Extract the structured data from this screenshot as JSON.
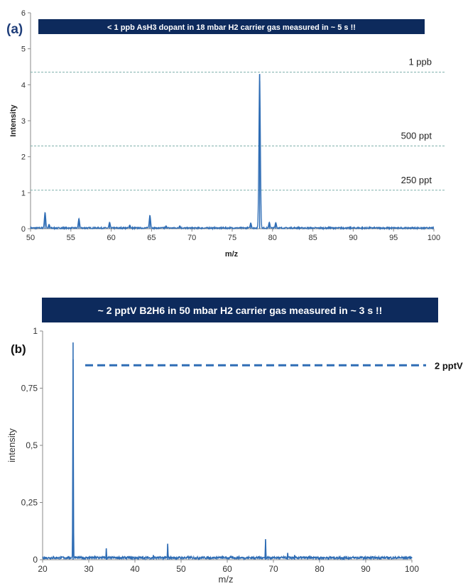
{
  "chart_data": [
    {
      "type": "line",
      "panel_label": "(a)",
      "title": "< 1 ppb AsH3  dopant in 18 mbar H2 carrier gas measured in ~ 5 s !!",
      "xlabel": "m/z",
      "ylabel": "Intensity",
      "xlim": [
        50,
        100
      ],
      "ylim": [
        0,
        6
      ],
      "xticks": [
        "50",
        "55",
        "60",
        "65",
        "70",
        "75",
        "80",
        "85",
        "90",
        "95",
        "100"
      ],
      "yticks": [
        "0",
        "1",
        "2",
        "3",
        "4",
        "5",
        "6"
      ],
      "grid": false,
      "reference_lines": [
        {
          "label": "1 ppb",
          "y": 4.35
        },
        {
          "label": "500 ppt",
          "y": 2.3
        },
        {
          "label": "250 ppt",
          "y": 1.07
        }
      ],
      "peaks": [
        {
          "x": 51.8,
          "y": 0.45
        },
        {
          "x": 52.3,
          "y": 0.12
        },
        {
          "x": 56.0,
          "y": 0.28
        },
        {
          "x": 59.8,
          "y": 0.18
        },
        {
          "x": 62.3,
          "y": 0.1
        },
        {
          "x": 64.8,
          "y": 0.37
        },
        {
          "x": 66.8,
          "y": 0.08
        },
        {
          "x": 68.5,
          "y": 0.08
        },
        {
          "x": 77.3,
          "y": 0.16
        },
        {
          "x": 78.4,
          "y": 4.3
        },
        {
          "x": 79.6,
          "y": 0.18
        },
        {
          "x": 80.4,
          "y": 0.17
        }
      ],
      "series_color": "#2f6db5"
    },
    {
      "type": "line",
      "panel_label": "(b)",
      "title": "~ 2 pptV B2H6 in 50 mbar H2 carrier gas measured in ~ 3 s !!",
      "xlabel": "m/z",
      "ylabel": "intensity",
      "xlim": [
        20,
        100
      ],
      "ylim": [
        0,
        1
      ],
      "xticks": [
        "20",
        "30",
        "40",
        "50",
        "60",
        "70",
        "80",
        "90",
        "100"
      ],
      "yticks": [
        "0",
        "0,25",
        "0,5",
        "0,75",
        "1"
      ],
      "grid": false,
      "reference_lines": [
        {
          "label": "2 pptV",
          "y": 0.85
        }
      ],
      "peaks": [
        {
          "x": 26.6,
          "y": 0.95
        },
        {
          "x": 33.8,
          "y": 0.05
        },
        {
          "x": 44.0,
          "y": 0.02
        },
        {
          "x": 47.1,
          "y": 0.07
        },
        {
          "x": 68.3,
          "y": 0.09
        },
        {
          "x": 73.1,
          "y": 0.03
        },
        {
          "x": 74.6,
          "y": 0.02
        }
      ],
      "series_color": "#2f6db5"
    }
  ],
  "colors": {
    "title_bar": "#0d2a5c",
    "series": "#2f6db5",
    "ref_line_a": "#7fb0ac",
    "ref_line_b": "#2f6db5"
  }
}
